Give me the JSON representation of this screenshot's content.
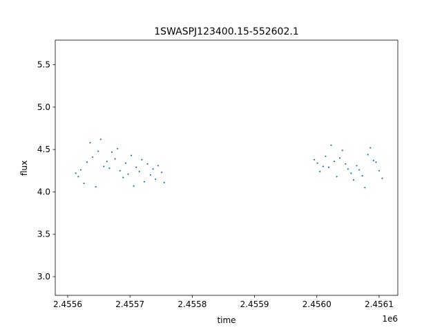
{
  "chart_data": {
    "type": "scatter",
    "title": "1SWASPJ123400.15-552602.1",
    "xlabel": "time",
    "ylabel": "flux",
    "x_offset_label": "1e6",
    "xlim": [
      2.45558,
      2.45613
    ],
    "ylim": [
      2.78,
      5.79
    ],
    "xticks": [
      2.4556,
      2.4557,
      2.4558,
      2.4559,
      2.456,
      2.4561
    ],
    "xtick_labels": [
      "2.4556",
      "2.4557",
      "2.4558",
      "2.4559",
      "2.4560",
      "2.4561"
    ],
    "yticks": [
      3.0,
      3.5,
      4.0,
      4.5,
      5.0,
      5.5
    ],
    "ytick_labels": [
      "3.0",
      "3.5",
      "4.0",
      "4.5",
      "5.0",
      "5.5"
    ],
    "grid": false,
    "legend": "none",
    "color": "#1f77b4",
    "series": [
      {
        "x": [
          2.455613,
          2.455617,
          2.455621,
          2.455626,
          2.455631,
          2.455636,
          2.45564,
          2.455645,
          2.455649,
          2.455653,
          2.455658,
          2.455663,
          2.455667,
          2.455671,
          2.455676,
          2.45568,
          2.455684,
          2.455689,
          2.455693,
          2.455697,
          2.455702,
          2.455706,
          2.45571,
          2.455715,
          2.455719,
          2.455723,
          2.455728,
          2.455733,
          2.455737,
          2.455741,
          2.455745,
          2.455751,
          2.455755,
          2.455996,
          2.456001,
          2.456005,
          2.45601,
          2.456014,
          2.456019,
          2.456023,
          2.456028,
          2.456032,
          2.456037,
          2.456041,
          2.456046,
          2.45605,
          2.456055,
          2.456059,
          2.456064,
          2.456068,
          2.456073,
          2.456077,
          2.456082,
          2.456086,
          2.456091,
          2.456095,
          2.4561,
          2.456105
        ],
        "y": [
          4.22,
          4.18,
          4.26,
          4.1,
          4.35,
          4.58,
          4.41,
          4.06,
          4.48,
          4.62,
          4.3,
          4.36,
          4.28,
          4.47,
          4.39,
          4.51,
          4.25,
          4.17,
          4.34,
          4.21,
          4.43,
          4.07,
          4.29,
          4.24,
          4.38,
          4.12,
          4.33,
          4.2,
          4.27,
          4.15,
          4.31,
          4.23,
          4.11,
          4.38,
          4.34,
          4.24,
          4.3,
          4.42,
          4.29,
          4.55,
          4.36,
          4.18,
          4.4,
          4.49,
          4.33,
          4.27,
          4.22,
          4.14,
          4.31,
          4.26,
          4.19,
          4.05,
          4.44,
          4.52,
          4.37,
          4.35,
          4.25,
          4.16
        ]
      }
    ]
  }
}
